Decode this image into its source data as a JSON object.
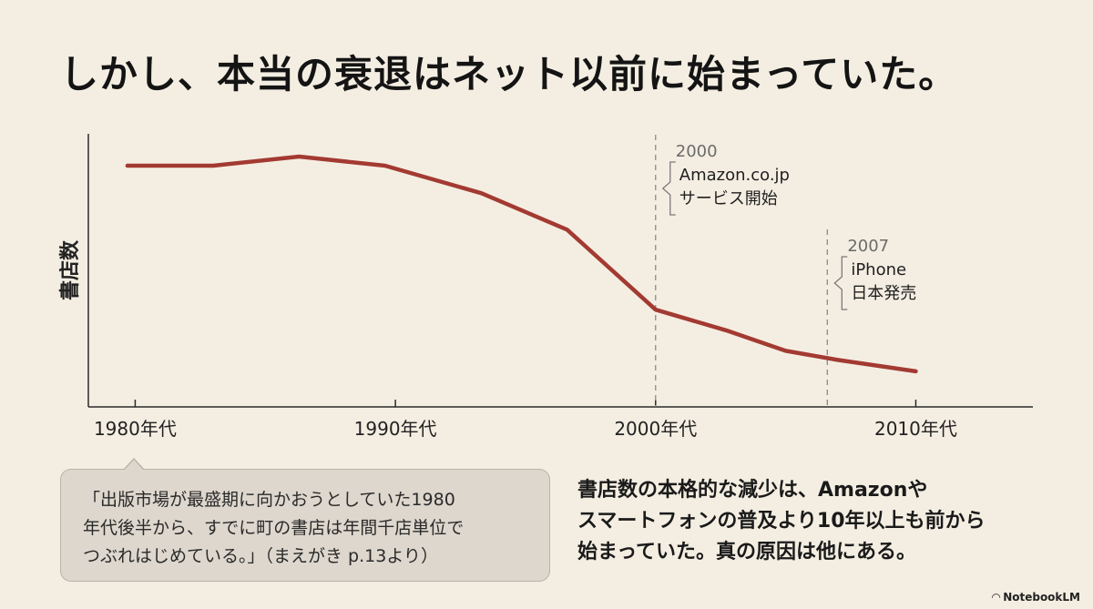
{
  "title": "しかし、本当の衰退はネット以前に始まっていた。",
  "colors": {
    "line": "#a33a32",
    "background": "#f4eee2",
    "quote_bg": "#ddd7cd"
  },
  "chart_data": {
    "type": "line",
    "title": "しかし、本当の衰退はネット以前に始まっていた。",
    "ylabel": "書店数",
    "xlabel": "",
    "x_ticks": [
      {
        "x": 1980,
        "label": "1980年代"
      },
      {
        "x": 1990,
        "label": "1990年代"
      },
      {
        "x": 2000,
        "label": "2000年代"
      },
      {
        "x": 2010,
        "label": "2010年代"
      }
    ],
    "xlim": [
      1978.2,
      2014.5
    ],
    "ylim": [
      0,
      100
    ],
    "y_ticks_shown": false,
    "grid": false,
    "x": [
      1979.7,
      1983,
      1986.3,
      1989.6,
      1993.3,
      1996.6,
      2000,
      2002.7,
      2005,
      2007,
      2010
    ],
    "values": [
      96,
      96,
      100,
      96,
      84,
      68,
      33,
      24,
      15,
      11,
      6
    ],
    "annotations": [
      {
        "x": 2000,
        "year": "2000",
        "lines": [
          "Amazon.co.jp",
          "サービス開始"
        ]
      },
      {
        "x": 2006.6,
        "year": "2007",
        "lines": [
          "iPhone",
          "日本発売"
        ]
      }
    ]
  },
  "quote": {
    "lines": [
      "「出版市場が最盛期に向かおうとしていた1980",
      "年代後半から、すでに町の書店は年間千店単位で",
      "つぶれはじめている。」（まえがき p.13より）"
    ]
  },
  "summary": {
    "lines": [
      "書店数の本格的な減少は、Amazonや",
      "スマートフォンの普及より10年以上も前から",
      "始まっていた。真の原因は他にある。"
    ]
  },
  "brand": {
    "label": "NotebookLM"
  }
}
